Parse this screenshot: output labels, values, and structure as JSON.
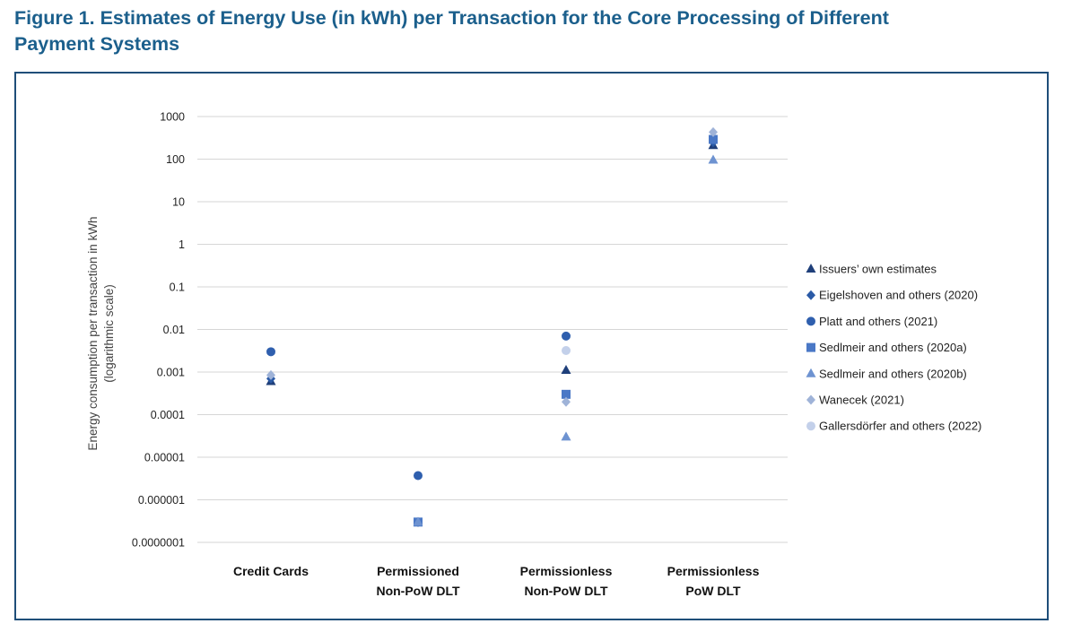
{
  "figure": {
    "title_line1": "Figure 1. Estimates of Energy Use (in kWh) per Transaction for the Core Processing of Different",
    "title_line2": "Payment Systems"
  },
  "chart_data": {
    "type": "scatter",
    "yscale": "log",
    "ylabel_line1": "Energy consumption per transaction in kWh",
    "ylabel_line2": "(logarithmic scale)",
    "ylim": [
      1e-07,
      1000
    ],
    "yticks": [
      {
        "value": 1000,
        "label": "1000"
      },
      {
        "value": 100,
        "label": "100"
      },
      {
        "value": 10,
        "label": "10"
      },
      {
        "value": 1,
        "label": "1"
      },
      {
        "value": 0.1,
        "label": "0.1"
      },
      {
        "value": 0.01,
        "label": "0.01"
      },
      {
        "value": 0.001,
        "label": "0.001"
      },
      {
        "value": 0.0001,
        "label": "0.0001"
      },
      {
        "value": 1e-05,
        "label": "0.00001"
      },
      {
        "value": 1e-06,
        "label": "0.000001"
      },
      {
        "value": 1e-07,
        "label": "0.0000001"
      }
    ],
    "categories": [
      {
        "line1": "Credit Cards",
        "line2": ""
      },
      {
        "line1": "Permissioned",
        "line2": "Non-PoW DLT"
      },
      {
        "line1": "Permissionless",
        "line2": "Non-PoW DLT"
      },
      {
        "line1": "Permissionless",
        "line2": "PoW DLT"
      }
    ],
    "grid": true,
    "legend_position": "right",
    "series": [
      {
        "name": "Issuers’ own estimates",
        "marker": "triangle",
        "color": "#1f3f7a",
        "values": [
          0.0006,
          null,
          0.0011,
          210
        ]
      },
      {
        "name": "Eigelshoven and others (2020)",
        "marker": "diamond",
        "color": "#2a5aa6",
        "values": [
          0.0007,
          3e-07,
          null,
          250
        ]
      },
      {
        "name": "Platt and others (2021)",
        "marker": "circle",
        "color": "#2f5fae",
        "values": [
          0.003,
          3.7e-06,
          0.007,
          null
        ]
      },
      {
        "name": "Sedlmeir and others (2020a)",
        "marker": "square",
        "color": "#4a78c6",
        "values": [
          null,
          3e-07,
          0.0003,
          290
        ]
      },
      {
        "name": "Sedlmeir and others (2020b)",
        "marker": "triangle",
        "color": "#6e93d1",
        "values": [
          null,
          3e-07,
          3e-05,
          95
        ]
      },
      {
        "name": "Wanecek (2021)",
        "marker": "diamond",
        "color": "#9fb3d8",
        "values": [
          0.00085,
          null,
          0.0002,
          430
        ]
      },
      {
        "name": "Gallersdörfer and others (2022)",
        "marker": "circle",
        "color": "#c3d0ea",
        "values": [
          null,
          null,
          0.0032,
          null
        ]
      }
    ]
  }
}
